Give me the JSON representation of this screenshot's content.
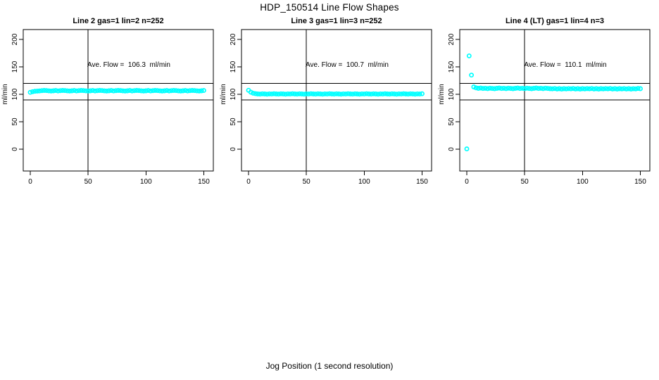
{
  "page": {
    "title": "HDP_150514  Line Flow Shapes",
    "background": "#ffffff"
  },
  "chart_data": {
    "type": "scatter",
    "title": "HDP_150514  Line Flow Shapes",
    "xlabel": "Jog Position (1 second resolution)",
    "ylabel": "ml/min",
    "point_color": "#00ffff",
    "axis_color": "#000000",
    "x_ticks": [
      0,
      50,
      100,
      150
    ],
    "y_ticks": [
      0,
      50,
      100,
      150,
      200
    ],
    "xlim": [
      -6,
      158
    ],
    "ylim": [
      -40,
      220
    ],
    "grid": false,
    "ref_lines_y": [
      120,
      90
    ],
    "ref_line_x": 50,
    "panels": [
      {
        "title": "Line 2 gas=1 lin=2 n=252",
        "annotation": "Ave. Flow =  106.3  ml/min",
        "ave_flow": 106.3,
        "n": 252,
        "x_start": 0,
        "x_step": 2,
        "y": [
          103.6,
          104.8,
          105.5,
          105.9,
          106.2,
          106.7,
          107.1,
          106.8,
          106.3,
          106.0,
          106.4,
          106.9,
          106.2,
          106.7,
          107.1,
          106.8,
          106.3,
          106.0,
          106.4,
          106.9,
          106.2,
          106.7,
          107.1,
          106.8,
          106.3,
          106.0,
          106.4,
          106.9,
          106.2,
          106.7,
          107.1,
          106.8,
          106.3,
          106.0,
          106.4,
          106.9,
          106.2,
          106.7,
          107.1,
          106.8,
          106.3,
          106.0,
          106.4,
          106.9,
          106.2,
          106.7,
          107.1,
          106.8,
          106.3,
          106.0,
          106.4,
          106.9,
          106.2,
          106.7,
          107.1,
          106.8,
          106.3,
          106.0,
          106.4,
          106.9,
          106.2,
          106.7,
          107.1,
          106.8,
          106.3,
          106.0,
          106.4,
          106.9,
          106.2,
          106.7,
          107.1,
          106.8,
          106.3,
          106.0,
          106.4,
          106.9
        ]
      },
      {
        "title": "Line 3 gas=1 lin=3 n=252",
        "annotation": "Ave. Flow =  100.7  ml/min",
        "ave_flow": 100.7,
        "n": 252,
        "x_start": 0,
        "x_step": 2,
        "y": [
          107.3,
          103.9,
          102.0,
          101.1,
          100.7,
          100.4,
          100.9,
          100.6,
          100.3,
          100.8,
          100.5,
          101.0,
          100.7,
          100.4,
          100.9,
          100.6,
          100.3,
          100.8,
          100.5,
          101.0,
          100.7,
          100.4,
          100.9,
          100.6,
          100.3,
          100.8,
          100.5,
          101.0,
          100.7,
          100.4,
          100.9,
          100.6,
          100.3,
          100.8,
          100.5,
          101.0,
          100.7,
          100.4,
          100.9,
          100.6,
          100.3,
          100.8,
          100.5,
          101.0,
          100.7,
          100.4,
          100.9,
          100.6,
          100.3,
          100.8,
          100.5,
          101.0,
          100.7,
          100.4,
          100.9,
          100.6,
          100.3,
          100.8,
          100.5,
          101.0,
          100.7,
          100.4,
          100.9,
          100.6,
          100.3,
          100.8,
          100.5,
          101.0,
          100.7,
          100.4,
          100.9,
          100.6,
          100.3,
          100.8,
          100.5,
          101.0
        ]
      },
      {
        "title": "Line 4 (LT) gas=1 lin=4 n=3",
        "annotation": "Ave. Flow =  110.1  ml/min",
        "ave_flow": 110.1,
        "n": 3,
        "x_start": 0,
        "x_step": 2,
        "y": [
          0.5,
          170.0,
          135.0,
          113.5,
          111.8,
          110.9,
          111.4,
          110.6,
          111.0,
          110.4,
          111.2,
          110.7,
          110.2,
          110.9,
          111.4,
          110.6,
          111.0,
          110.4,
          111.2,
          110.7,
          110.2,
          110.9,
          111.4,
          110.6,
          111.0,
          110.4,
          111.2,
          110.7,
          110.2,
          110.9,
          111.4,
          110.6,
          111.0,
          110.4,
          111.2,
          110.7,
          110.2,
          110.0,
          110.5,
          109.8,
          110.3,
          109.6,
          110.2,
          109.9,
          110.4,
          110.0,
          110.5,
          109.8,
          110.3,
          109.6,
          110.2,
          109.9,
          110.4,
          110.0,
          110.5,
          109.8,
          110.3,
          109.6,
          110.2,
          109.9,
          110.4,
          110.0,
          110.5,
          109.8,
          110.3,
          109.6,
          110.2,
          109.9,
          110.4,
          109.8,
          110.3,
          109.6,
          110.1,
          109.9,
          110.6,
          110.2
        ]
      }
    ]
  }
}
